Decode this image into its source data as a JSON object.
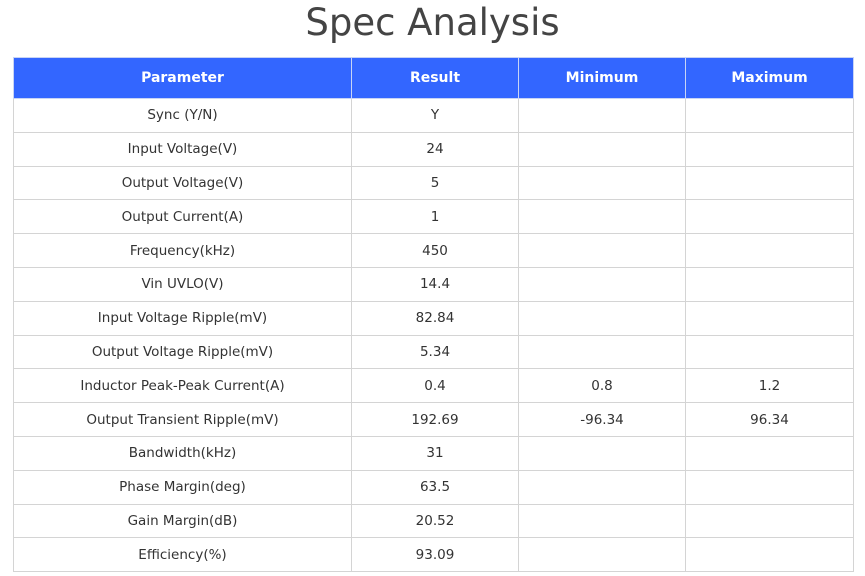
{
  "title": "Spec Analysis",
  "colors": {
    "header_bg": "#3366ff",
    "header_text": "#ffffff"
  },
  "table": {
    "headers": [
      "Parameter",
      "Result",
      "Minimum",
      "Maximum"
    ],
    "rows": [
      [
        "Sync (Y/N)",
        "Y",
        "",
        ""
      ],
      [
        "Input Voltage(V)",
        "24",
        "",
        ""
      ],
      [
        "Output Voltage(V)",
        "5",
        "",
        ""
      ],
      [
        "Output Current(A)",
        "1",
        "",
        ""
      ],
      [
        "Frequency(kHz)",
        "450",
        "",
        ""
      ],
      [
        "Vin UVLO(V)",
        "14.4",
        "",
        ""
      ],
      [
        "Input Voltage Ripple(mV)",
        "82.84",
        "",
        ""
      ],
      [
        "Output Voltage Ripple(mV)",
        "5.34",
        "",
        ""
      ],
      [
        "Inductor Peak-Peak Current(A)",
        "0.4",
        "0.8",
        "1.2"
      ],
      [
        "Output Transient Ripple(mV)",
        "192.69",
        "-96.34",
        "96.34"
      ],
      [
        "Bandwidth(kHz)",
        "31",
        "",
        ""
      ],
      [
        "Phase Margin(deg)",
        "63.5",
        "",
        ""
      ],
      [
        "Gain Margin(dB)",
        "20.52",
        "",
        ""
      ],
      [
        "Efficiency(%)",
        "93.09",
        "",
        ""
      ]
    ]
  }
}
